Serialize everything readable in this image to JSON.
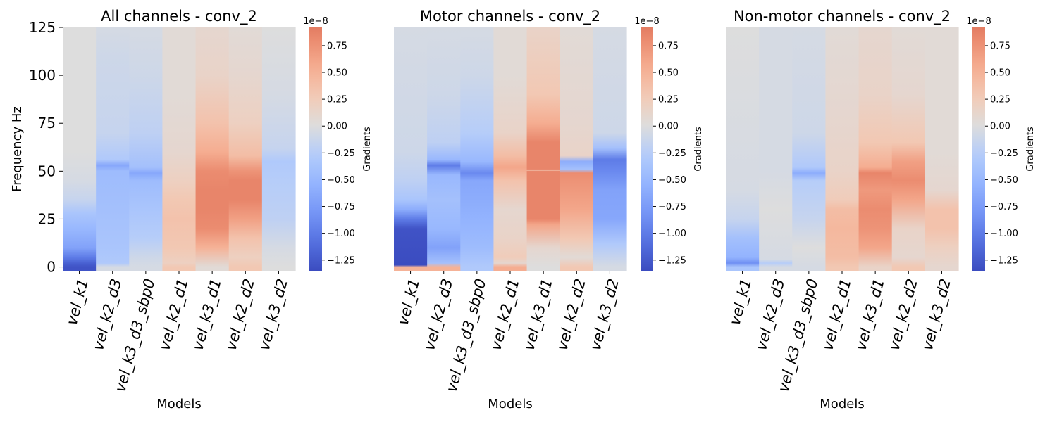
{
  "chart_data": [
    {
      "type": "heatmap",
      "title": "All channels - conv_2",
      "xlabel": "Models",
      "ylabel": "Frequency Hz",
      "categories": [
        "vel_k1",
        "vel_k2_d3",
        "vel_k3_d3_sbp0",
        "vel_k2_d1",
        "vel_k3_d1",
        "vel_k2_d2",
        "vel_k3_d2"
      ],
      "y_ticks": [
        "0",
        "25",
        "50",
        "75",
        "100",
        "125"
      ],
      "ylim": [
        -2,
        125
      ],
      "colorbar": {
        "label": "Gradients",
        "multiplier": "1e−8",
        "ticks": [
          "0.75",
          "0.50",
          "0.25",
          "0.00",
          "−0.25",
          "−0.50",
          "−0.75",
          "−1.00",
          "−1.25"
        ],
        "range": [
          -1.35,
          0.92
        ]
      },
      "columns": [
        [
          [
            0,
            -1.3
          ],
          [
            2,
            -1.2
          ],
          [
            5,
            -1.0
          ],
          [
            10,
            -0.7
          ],
          [
            20,
            -0.5
          ],
          [
            28,
            -0.35
          ],
          [
            35,
            -0.15
          ],
          [
            45,
            -0.05
          ],
          [
            60,
            0
          ],
          [
            125,
            0
          ]
        ],
        [
          [
            0,
            -0.05
          ],
          [
            2,
            -0.3
          ],
          [
            10,
            -0.35
          ],
          [
            30,
            -0.4
          ],
          [
            50,
            -0.45
          ],
          [
            53,
            -0.65
          ],
          [
            56,
            -0.3
          ],
          [
            70,
            -0.15
          ],
          [
            110,
            -0.1
          ],
          [
            125,
            -0.05
          ]
        ],
        [
          [
            0,
            -0.05
          ],
          [
            5,
            -0.1
          ],
          [
            15,
            -0.25
          ],
          [
            30,
            -0.35
          ],
          [
            45,
            -0.45
          ],
          [
            49,
            -0.65
          ],
          [
            52,
            -0.4
          ],
          [
            70,
            -0.2
          ],
          [
            100,
            -0.1
          ],
          [
            125,
            -0.05
          ]
        ],
        [
          [
            0,
            0.3
          ],
          [
            2,
            0.2
          ],
          [
            10,
            0.3
          ],
          [
            25,
            0.35
          ],
          [
            35,
            0.3
          ],
          [
            45,
            0.2
          ],
          [
            60,
            0.1
          ],
          [
            90,
            0.05
          ],
          [
            125,
            0.05
          ]
        ],
        [
          [
            0,
            0.05
          ],
          [
            10,
            0.5
          ],
          [
            20,
            0.8
          ],
          [
            30,
            0.85
          ],
          [
            40,
            0.85
          ],
          [
            50,
            0.8
          ],
          [
            60,
            0.55
          ],
          [
            75,
            0.35
          ],
          [
            100,
            0.15
          ],
          [
            125,
            0.1
          ]
        ],
        [
          [
            0,
            0.3
          ],
          [
            5,
            0.2
          ],
          [
            15,
            0.35
          ],
          [
            25,
            0.65
          ],
          [
            35,
            0.85
          ],
          [
            45,
            0.85
          ],
          [
            50,
            0.75
          ],
          [
            58,
            0.4
          ],
          [
            75,
            0.2
          ],
          [
            100,
            0.1
          ],
          [
            125,
            0.05
          ]
        ],
        [
          [
            0,
            0
          ],
          [
            10,
            -0.05
          ],
          [
            25,
            -0.2
          ],
          [
            45,
            -0.25
          ],
          [
            55,
            -0.3
          ],
          [
            62,
            -0.15
          ],
          [
            90,
            -0.05
          ],
          [
            125,
            0
          ]
        ]
      ]
    },
    {
      "type": "heatmap",
      "title": "Motor channels - conv_2",
      "xlabel": "Models",
      "categories": [
        "vel_k1",
        "vel_k2_d3",
        "vel_k3_d3_sbp0",
        "vel_k2_d1",
        "vel_k3_d1",
        "vel_k2_d2",
        "vel_k3_d2"
      ],
      "ylim": [
        -2,
        125
      ],
      "colorbar": {
        "label": "Gradients",
        "multiplier": "1e−8",
        "ticks": [
          "0.75",
          "0.50",
          "0.25",
          "0.00",
          "−0.25",
          "−0.50",
          "−0.75",
          "−1.00",
          "−1.25"
        ],
        "range": [
          -1.35,
          0.92
        ]
      },
      "columns": [
        [
          [
            0,
            0.5
          ],
          [
            1,
            -1.35
          ],
          [
            20,
            -1.3
          ],
          [
            25,
            -1.0
          ],
          [
            30,
            -0.6
          ],
          [
            35,
            -0.35
          ],
          [
            45,
            -0.2
          ],
          [
            60,
            -0.1
          ],
          [
            125,
            -0.05
          ]
        ],
        [
          [
            0,
            0.5
          ],
          [
            2,
            -0.4
          ],
          [
            10,
            -0.7
          ],
          [
            20,
            -0.5
          ],
          [
            35,
            -0.4
          ],
          [
            48,
            -0.5
          ],
          [
            53,
            -1.0
          ],
          [
            56,
            -0.5
          ],
          [
            65,
            -0.2
          ],
          [
            90,
            -0.1
          ],
          [
            125,
            -0.05
          ]
        ],
        [
          [
            0,
            -0.3
          ],
          [
            10,
            -0.45
          ],
          [
            25,
            -0.55
          ],
          [
            34,
            -0.6
          ],
          [
            45,
            -0.65
          ],
          [
            49,
            -0.9
          ],
          [
            55,
            -0.5
          ],
          [
            70,
            -0.25
          ],
          [
            100,
            -0.1
          ],
          [
            125,
            -0.05
          ]
        ],
        [
          [
            0,
            0.55
          ],
          [
            2,
            0.1
          ],
          [
            5,
            0.25
          ],
          [
            15,
            0.15
          ],
          [
            30,
            0.1
          ],
          [
            45,
            0.35
          ],
          [
            52,
            0.6
          ],
          [
            58,
            0.4
          ],
          [
            70,
            0.15
          ],
          [
            100,
            0.05
          ],
          [
            125,
            0.05
          ]
        ],
        [
          [
            0,
            0
          ],
          [
            10,
            0.1
          ],
          [
            22,
            0.6
          ],
          [
            25,
            0.85
          ],
          [
            50,
            0.85
          ],
          [
            50.5,
            0.3
          ],
          [
            51,
            0.85
          ],
          [
            65,
            0.85
          ],
          [
            75,
            0.55
          ],
          [
            90,
            0.3
          ],
          [
            125,
            0.15
          ]
        ],
        [
          [
            0,
            0.3
          ],
          [
            5,
            0.05
          ],
          [
            15,
            0.3
          ],
          [
            30,
            0.6
          ],
          [
            45,
            0.75
          ],
          [
            49,
            0.8
          ],
          [
            51,
            -0.4
          ],
          [
            55,
            -0.6
          ],
          [
            58,
            0.15
          ],
          [
            75,
            0.1
          ],
          [
            125,
            0.05
          ]
        ],
        [
          [
            0,
            -0.05
          ],
          [
            12,
            -0.3
          ],
          [
            25,
            -0.65
          ],
          [
            40,
            -0.7
          ],
          [
            50,
            -0.9
          ],
          [
            56,
            -1.0
          ],
          [
            62,
            -0.4
          ],
          [
            70,
            -0.1
          ],
          [
            125,
            -0.05
          ]
        ]
      ]
    },
    {
      "type": "heatmap",
      "title": "Non-motor channels - conv_2",
      "xlabel": "Models",
      "categories": [
        "vel_k1",
        "vel_k2_d3",
        "vel_k3_d3_sbp0",
        "vel_k2_d1",
        "vel_k3_d1",
        "vel_k2_d2",
        "vel_k3_d2"
      ],
      "ylim": [
        -2,
        125
      ],
      "colorbar": {
        "label": "Gradients",
        "multiplier": "1e−8",
        "ticks": [
          "0.75",
          "0.50",
          "0.25",
          "0.00",
          "−0.25",
          "−0.50",
          "−0.75",
          "−1.00",
          "−1.25"
        ],
        "range": [
          -1.35,
          0.92
        ]
      },
      "columns": [
        [
          [
            0,
            -0.35
          ],
          [
            2,
            -0.85
          ],
          [
            5,
            -0.55
          ],
          [
            15,
            -0.4
          ],
          [
            25,
            -0.15
          ],
          [
            40,
            -0.05
          ],
          [
            125,
            0
          ]
        ],
        [
          [
            0,
            -0.05
          ],
          [
            2,
            -0.25
          ],
          [
            4,
            -0.05
          ],
          [
            30,
            0
          ],
          [
            50,
            -0.05
          ],
          [
            125,
            -0.05
          ]
        ],
        [
          [
            0,
            -0.05
          ],
          [
            10,
            0
          ],
          [
            25,
            -0.15
          ],
          [
            45,
            -0.25
          ],
          [
            49,
            -0.6
          ],
          [
            52,
            -0.3
          ],
          [
            70,
            -0.1
          ],
          [
            125,
            -0.05
          ]
        ],
        [
          [
            0,
            0.3
          ],
          [
            5,
            0.4
          ],
          [
            20,
            0.45
          ],
          [
            30,
            0.4
          ],
          [
            35,
            0.25
          ],
          [
            50,
            0.15
          ],
          [
            80,
            0.1
          ],
          [
            125,
            0.05
          ]
        ],
        [
          [
            0,
            0.15
          ],
          [
            10,
            0.6
          ],
          [
            20,
            0.75
          ],
          [
            30,
            0.8
          ],
          [
            40,
            0.7
          ],
          [
            49,
            0.85
          ],
          [
            52,
            0.55
          ],
          [
            65,
            0.3
          ],
          [
            90,
            0.15
          ],
          [
            125,
            0.1
          ]
        ],
        [
          [
            0,
            0.3
          ],
          [
            5,
            0.1
          ],
          [
            20,
            0.15
          ],
          [
            35,
            0.6
          ],
          [
            45,
            0.8
          ],
          [
            55,
            0.65
          ],
          [
            65,
            0.3
          ],
          [
            90,
            0.1
          ],
          [
            125,
            0.05
          ]
        ],
        [
          [
            0,
            0.1
          ],
          [
            10,
            0.2
          ],
          [
            20,
            0.35
          ],
          [
            30,
            0.35
          ],
          [
            40,
            0.1
          ],
          [
            60,
            0.05
          ],
          [
            125,
            0.05
          ]
        ]
      ]
    }
  ]
}
